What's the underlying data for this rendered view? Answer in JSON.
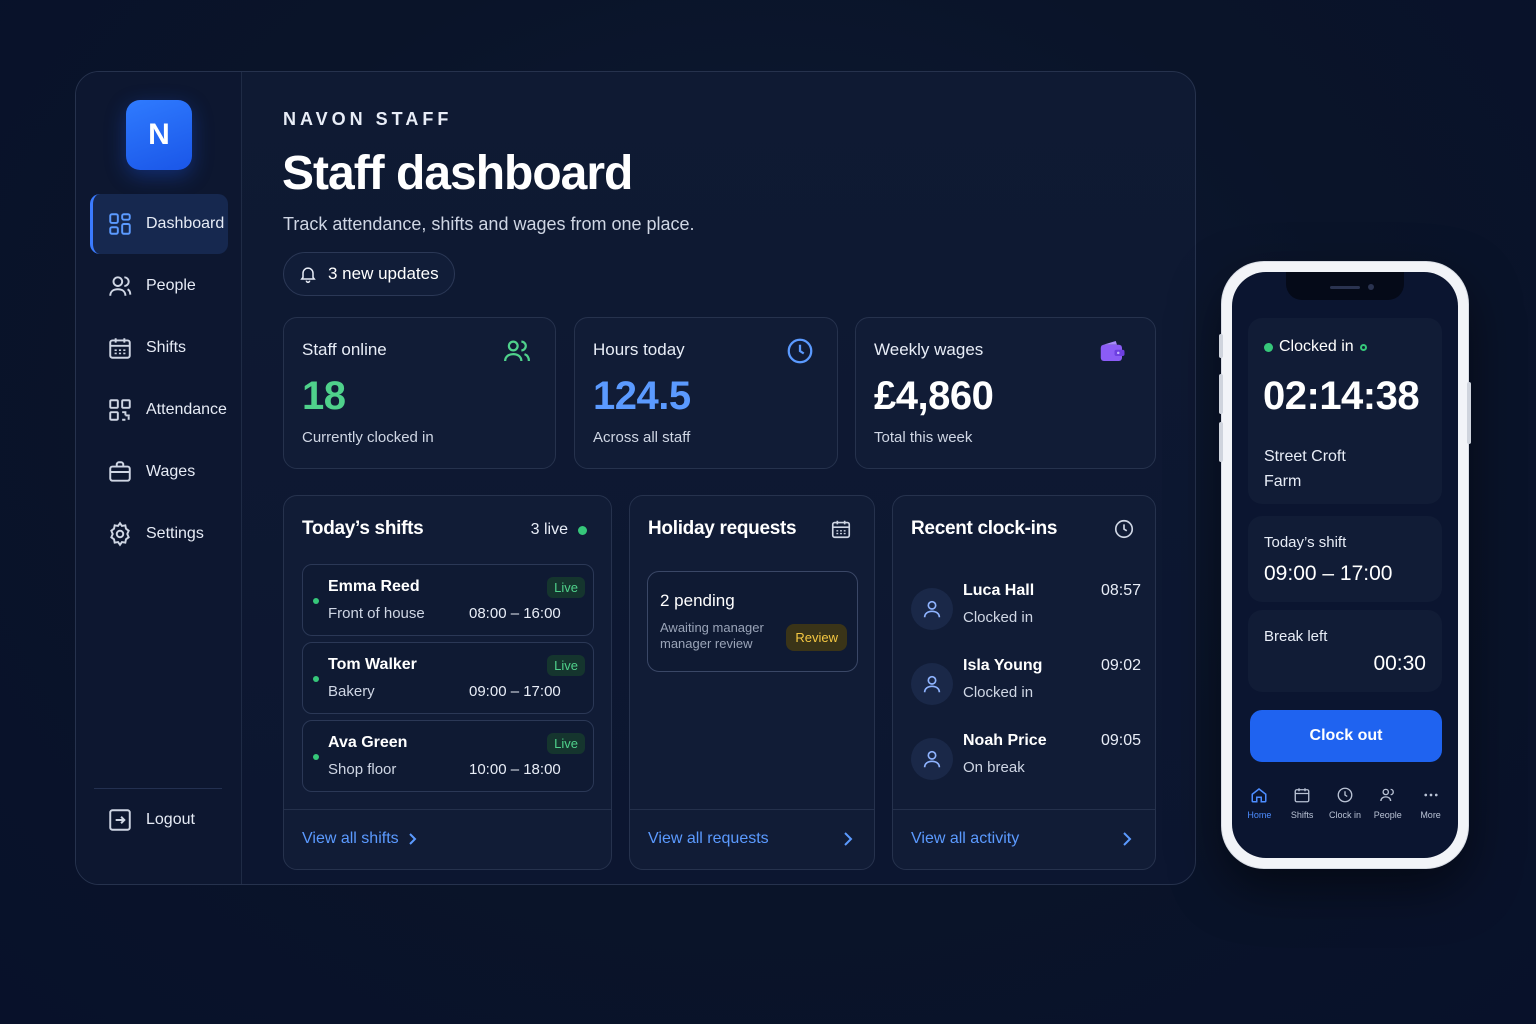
{
  "app": {
    "logo_letter": "N",
    "brand": "NAVON STAFF"
  },
  "sidebar": {
    "items": [
      {
        "label": "Dashboard",
        "icon": "grid-icon",
        "active": true
      },
      {
        "label": "People",
        "icon": "user-icon"
      },
      {
        "label": "Shifts",
        "icon": "calendar-icon"
      },
      {
        "label": "Attendance",
        "icon": "qr-code-icon"
      },
      {
        "label": "Wages",
        "icon": "briefcase-icon"
      },
      {
        "label": "Settings",
        "icon": "gear-icon"
      }
    ],
    "logout": "Logout"
  },
  "header": {
    "title": "Staff dashboard",
    "subtitle": "Track attendance, shifts and wages from one place.",
    "updates": "3 new updates"
  },
  "stats": [
    {
      "label": "Staff online",
      "value": "18",
      "sub": "Currently clocked in",
      "icon": "users-icon",
      "color": "#4fd18b"
    },
    {
      "label": "Hours today",
      "value": "124.5",
      "sub": "Across all staff",
      "icon": "clock-icon",
      "color": "#5b9aff"
    },
    {
      "label": "Weekly wages",
      "value": "£4,860",
      "sub": "Total this week",
      "icon": "wallet-icon",
      "color": "#8b5cf6"
    }
  ],
  "shifts_panel": {
    "title": "Today’s shifts",
    "live_count": "3 live",
    "items": [
      {
        "name": "Emma Reed",
        "dept": "Front of house",
        "time": "08:00 – 16:00",
        "badge": "Live"
      },
      {
        "name": "Tom Walker",
        "dept": "Bakery",
        "time": "09:00 – 17:00",
        "badge": "Live"
      },
      {
        "name": "Ava Green",
        "dept": "Shop floor",
        "time": "10:00 – 18:00",
        "badge": "Live"
      }
    ],
    "footer": "View all shifts"
  },
  "holiday_panel": {
    "title": "Holiday requests",
    "pending": "2 pending",
    "pending_sub": "Awaiting manager manager review",
    "badge": "Review",
    "footer": "View all requests"
  },
  "clockins_panel": {
    "title": "Recent clock-ins",
    "items": [
      {
        "name": "Luca Hall",
        "status": "Clocked in",
        "time": "08:57"
      },
      {
        "name": "Isla Young",
        "status": "Clocked in",
        "time": "09:02"
      },
      {
        "name": "Noah Price",
        "status": "On break",
        "time": "09:05"
      }
    ],
    "footer": "View all activity"
  },
  "phone": {
    "status": "Clocked in",
    "timer": "02:14:38",
    "location": "Street Croft Farm",
    "shift_label": "Today’s shift",
    "shift_time": "09:00 – 17:00",
    "break_label": "Break left",
    "break_time": "00:30",
    "clock_out": "Clock out",
    "tabs": [
      {
        "label": "Home",
        "icon": "home-icon",
        "active": true
      },
      {
        "label": "Shifts",
        "icon": "calendar-icon"
      },
      {
        "label": "Clock in",
        "icon": "clock-icon"
      },
      {
        "label": "People",
        "icon": "users-icon"
      },
      {
        "label": "More",
        "icon": "more-icon"
      }
    ]
  },
  "colors": {
    "accent": "#1f63f0",
    "link": "#5b9aff",
    "live": "#4fd18b",
    "review": "#f5c842",
    "background": "#0a1429"
  }
}
